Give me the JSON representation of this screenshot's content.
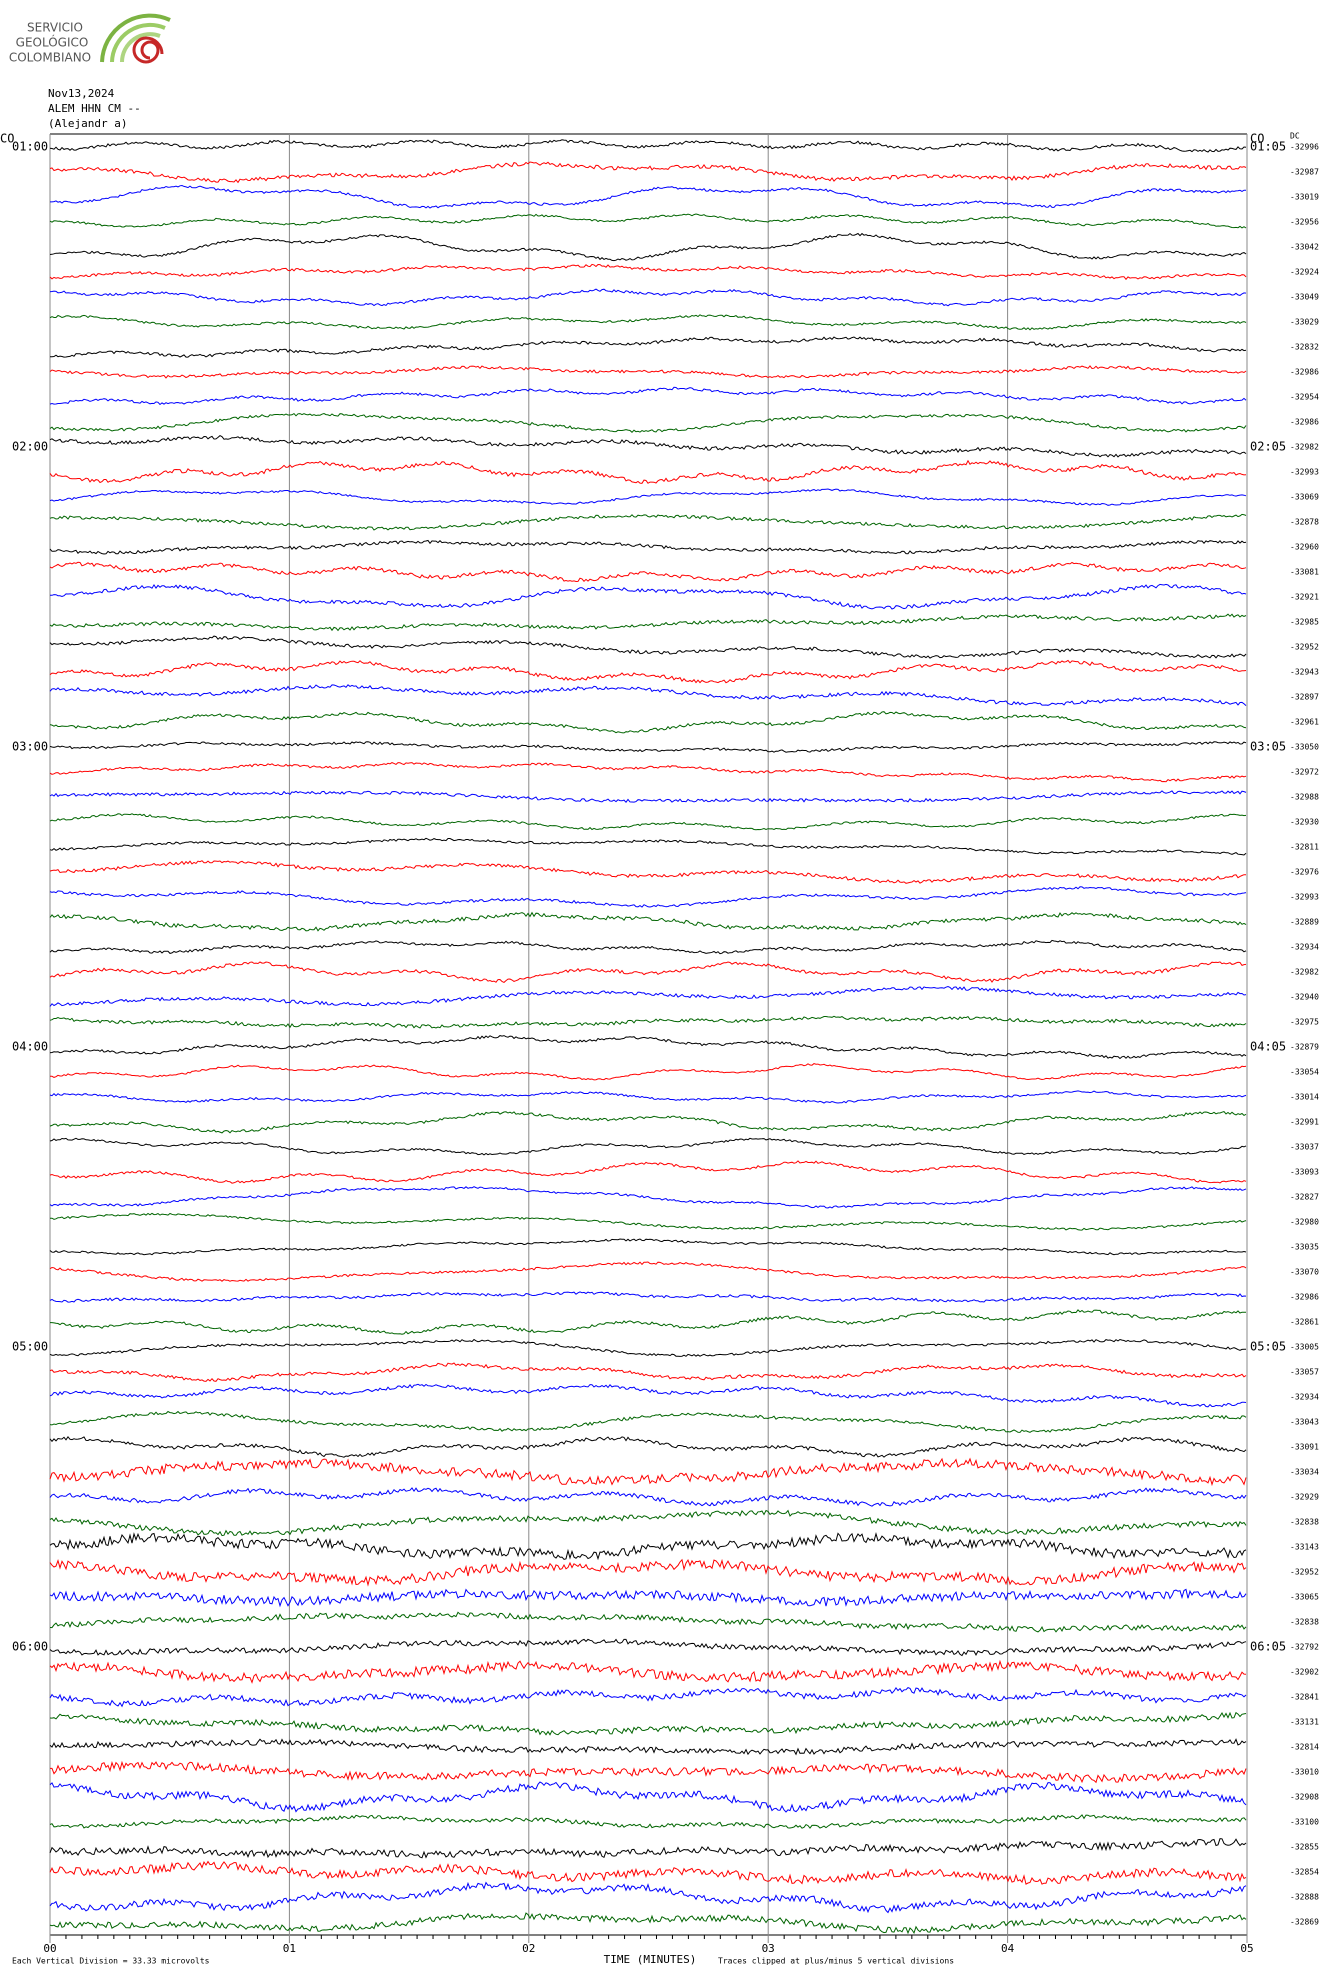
{
  "logo": {
    "lines": [
      "SERVICIO",
      "GEOLÓGICO",
      "COLOMBIANO"
    ]
  },
  "chart_data": {
    "type": "helicorder",
    "header": [
      "Nov13,2024",
      "ALEM HHN CM --",
      "(Alejandr  a)"
    ],
    "network_left": "CO",
    "network_right": "CO",
    "dc_label": "DC",
    "colors": [
      "#000000",
      "#ff0000",
      "#0000ff",
      "#006400"
    ],
    "hour_labels_left": [
      "01:00",
      "02:00",
      "03:00",
      "04:00",
      "05:00",
      "06:00"
    ],
    "hour_labels_right": [
      "01:05",
      "02:05",
      "03:05",
      "04:05",
      "05:05",
      "06:05"
    ],
    "dc_values": [
      -32996,
      -32987,
      -33019,
      -32956,
      -33042,
      -32924,
      -33049,
      -33029,
      -32832,
      -32986,
      -32954,
      -32986,
      -32982,
      -32993,
      -33069,
      -32878,
      -32960,
      -33081,
      -32921,
      -32985,
      -32952,
      -32943,
      -32897,
      -32961,
      -33050,
      -32972,
      -32988,
      -32930,
      -32811,
      -32976,
      -32993,
      -32889,
      -32934,
      -32982,
      -32940,
      -32975,
      -32879,
      -33054,
      -33014,
      -32991,
      -33037,
      -33093,
      -32827,
      -32980,
      -33035,
      -33070,
      -32986,
      -32861,
      -33005,
      -33057,
      -32934,
      -33043,
      -33091,
      -33034,
      -32929,
      -32838,
      -33143,
      -32952,
      -33065,
      -32838,
      -32792,
      -32902,
      -32841,
      -33131,
      -32814,
      -33010,
      -32908,
      -33100,
      -32855,
      -32854,
      -32888,
      -32869
    ],
    "xlim": [
      0,
      5
    ],
    "xticks": [
      {
        "value": 0,
        "label": "00"
      },
      {
        "value": 1,
        "label": "01"
      },
      {
        "value": 2,
        "label": "02"
      },
      {
        "value": 3,
        "label": "03"
      },
      {
        "value": 4,
        "label": "04"
      },
      {
        "value": 5,
        "label": "05"
      }
    ],
    "xlabel": "TIME (MINUTES)",
    "footer_left": "Each Vertical Division =  33.33 microvolts",
    "footer_right": "Traces clipped at plus/minus 5 vertical divisions"
  }
}
